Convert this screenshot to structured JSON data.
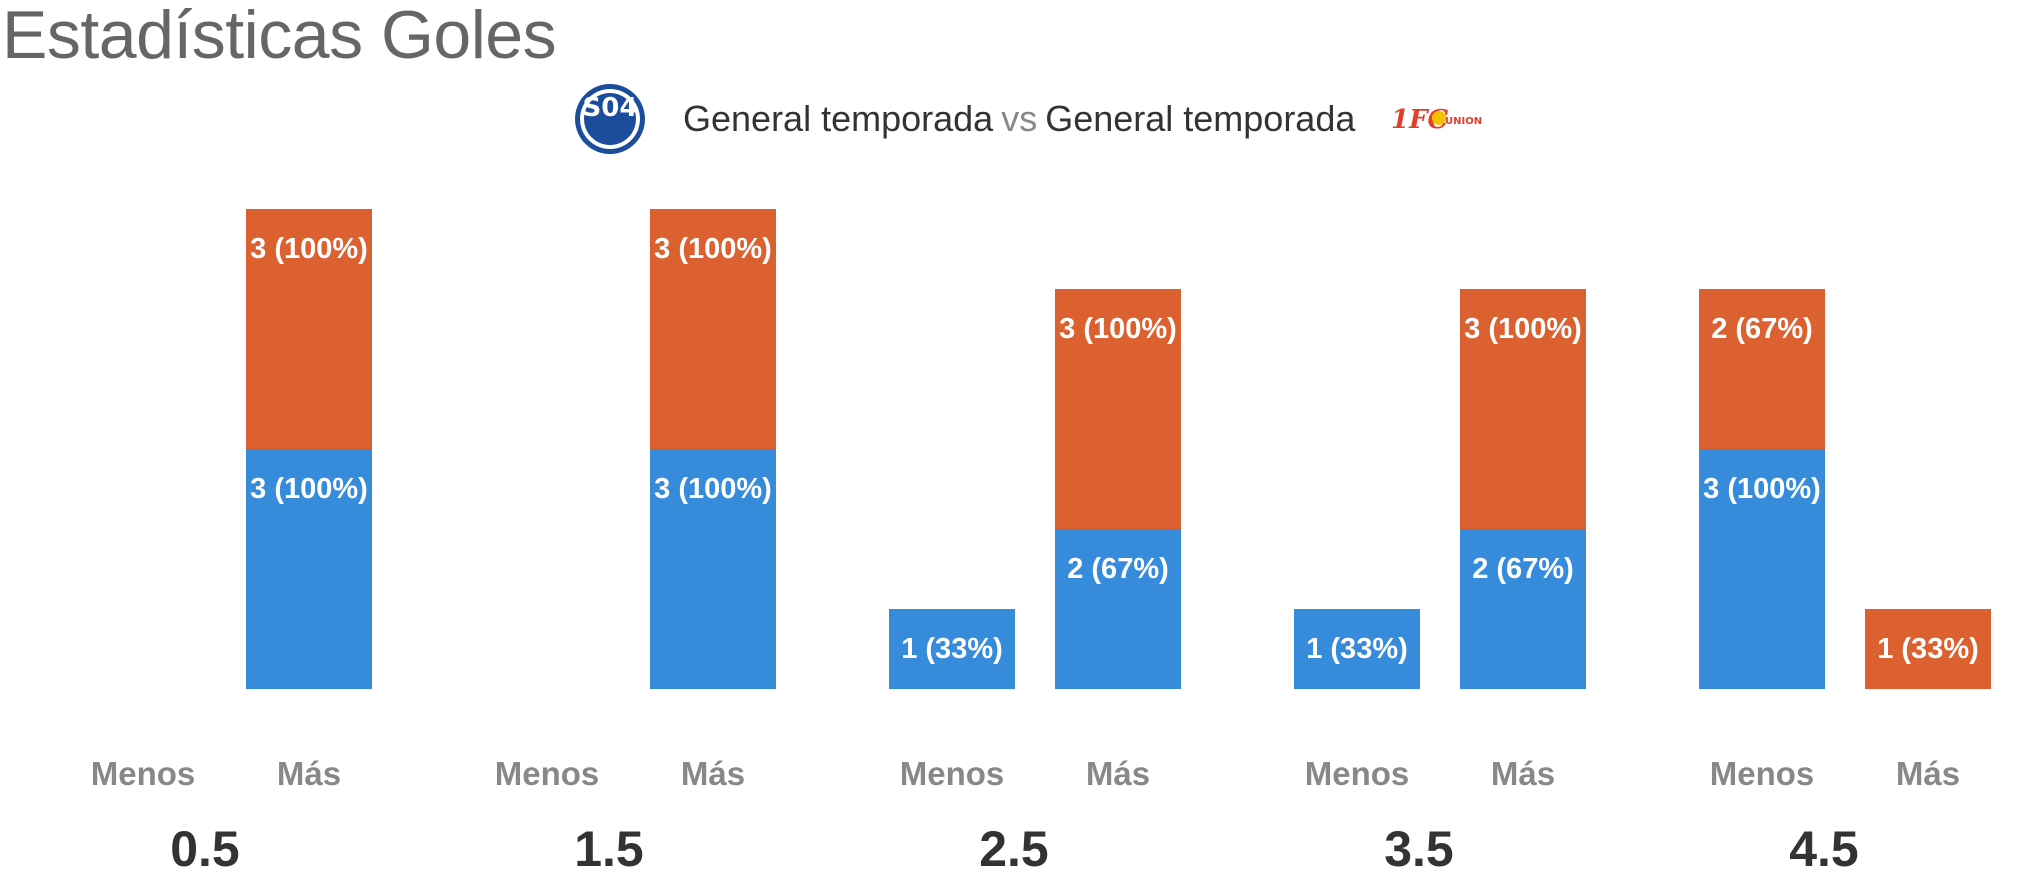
{
  "title": "Estadísticas Goles",
  "legend": {
    "home_label": "General temporada",
    "vs_label": "vs",
    "away_label": "General temporada",
    "home_logo_text": "S04",
    "away_logo_text": "1FC UNION",
    "home_logo_icon": "schalke-04-crest-icon",
    "away_logo_icon": "union-berlin-logo-icon"
  },
  "colors": {
    "home": "#368bdb",
    "away": "#dc6131",
    "category_text": "#888888",
    "group_text": "#333333"
  },
  "chart_data": {
    "type": "bar",
    "title": "Estadísticas Goles",
    "stacked": true,
    "ylim": [
      0,
      6
    ],
    "grid": false,
    "legend": "top-center",
    "categories": [
      "Menos",
      "Más"
    ],
    "series": [
      {
        "name": "General temporada",
        "color": "#368bdb"
      },
      {
        "name": "General temporada",
        "color": "#dc6131"
      }
    ],
    "groups": [
      {
        "label": "0.5",
        "bars": [
          {
            "category": "Menos",
            "values": [
              0,
              0
            ],
            "labels": [
              "",
              ""
            ]
          },
          {
            "category": "Más",
            "values": [
              3,
              3
            ],
            "labels": [
              "3 (100%)",
              "3 (100%)"
            ]
          }
        ]
      },
      {
        "label": "1.5",
        "bars": [
          {
            "category": "Menos",
            "values": [
              0,
              0
            ],
            "labels": [
              "",
              ""
            ]
          },
          {
            "category": "Más",
            "values": [
              3,
              3
            ],
            "labels": [
              "3 (100%)",
              "3 (100%)"
            ]
          }
        ]
      },
      {
        "label": "2.5",
        "bars": [
          {
            "category": "Menos",
            "values": [
              1,
              0
            ],
            "labels": [
              "1 (33%)",
              ""
            ]
          },
          {
            "category": "Más",
            "values": [
              2,
              3
            ],
            "labels": [
              "2 (67%)",
              "3 (100%)"
            ]
          }
        ]
      },
      {
        "label": "3.5",
        "bars": [
          {
            "category": "Menos",
            "values": [
              1,
              0
            ],
            "labels": [
              "1 (33%)",
              ""
            ]
          },
          {
            "category": "Más",
            "values": [
              2,
              3
            ],
            "labels": [
              "2 (67%)",
              "3 (100%)"
            ]
          }
        ]
      },
      {
        "label": "4.5",
        "bars": [
          {
            "category": "Menos",
            "values": [
              3,
              2
            ],
            "labels": [
              "3 (100%)",
              "2 (67%)"
            ]
          },
          {
            "category": "Más",
            "values": [
              0,
              1
            ],
            "labels": [
              "",
              "1 (33%)"
            ]
          }
        ]
      }
    ]
  }
}
